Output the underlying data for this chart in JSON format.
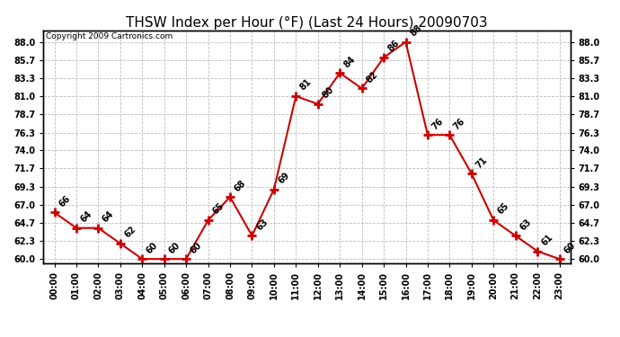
{
  "title": "THSW Index per Hour (°F) (Last 24 Hours) 20090703",
  "copyright": "Copyright 2009 Cartronics.com",
  "hours": [
    "00:00",
    "01:00",
    "02:00",
    "03:00",
    "04:00",
    "05:00",
    "06:00",
    "07:00",
    "08:00",
    "09:00",
    "10:00",
    "11:00",
    "12:00",
    "13:00",
    "14:00",
    "15:00",
    "16:00",
    "17:00",
    "18:00",
    "19:00",
    "20:00",
    "21:00",
    "22:00",
    "23:00"
  ],
  "values": [
    66,
    64,
    64,
    62,
    60,
    60,
    60,
    65,
    68,
    63,
    69,
    81,
    80,
    84,
    82,
    86,
    88,
    76,
    76,
    71,
    65,
    63,
    61,
    60
  ],
  "ylim": [
    59.5,
    89.5
  ],
  "yticks": [
    60.0,
    62.3,
    64.7,
    67.0,
    69.3,
    71.7,
    74.0,
    76.3,
    78.7,
    81.0,
    83.3,
    85.7,
    88.0
  ],
  "line_color": "#cc0000",
  "marker_color": "#cc0000",
  "bg_color": "#ffffff",
  "grid_color": "#bbbbbb",
  "title_fontsize": 11,
  "label_fontsize": 7,
  "annotation_fontsize": 7,
  "copyright_fontsize": 6.5
}
